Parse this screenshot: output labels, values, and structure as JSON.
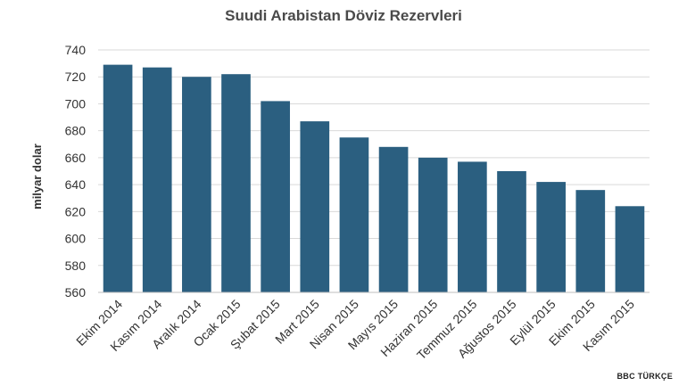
{
  "chart_data": {
    "type": "bar",
    "title": "Suudi Arabistan Döviz Rezervleri",
    "ylabel": "milyar dolar",
    "xlabel": "",
    "ylim": [
      560,
      740
    ],
    "yticks": [
      560,
      580,
      600,
      620,
      640,
      660,
      680,
      700,
      720,
      740
    ],
    "grid": true,
    "bar_color": "#2b5f80",
    "categories": [
      "Ekim 2014",
      "Kasım 2014",
      "Aralık 2014",
      "Ocak 2015",
      "Şubat 2015",
      "Mart 2015",
      "Nisan 2015",
      "Mayıs 2015",
      "Haziran 2015",
      "Temmuz 2015",
      "Ağustos 2015",
      "Eylül 2015",
      "Ekim 2015",
      "Kasım 2015"
    ],
    "values": [
      729,
      727,
      720,
      722,
      702,
      687,
      675,
      668,
      660,
      657,
      650,
      642,
      636,
      624
    ]
  },
  "source": "BBC TÜRKÇE"
}
